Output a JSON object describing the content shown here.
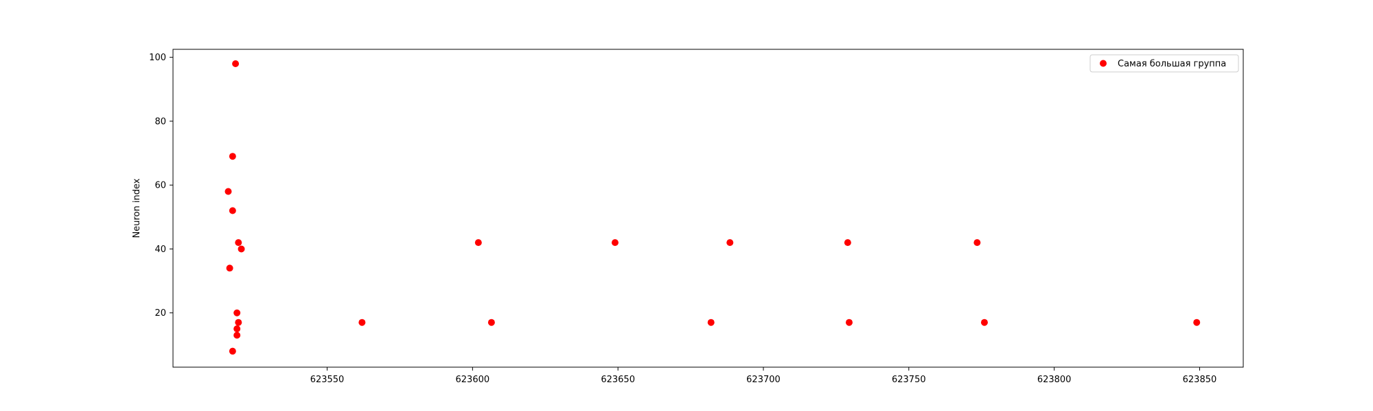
{
  "chart_data": {
    "type": "scatter",
    "title": "",
    "xlabel": "",
    "ylabel": "Neuron index",
    "xlim": [
      623497,
      623865
    ],
    "ylim": [
      3,
      102.5
    ],
    "xticks": [
      623550,
      623600,
      623650,
      623700,
      623750,
      623800,
      623850
    ],
    "yticks": [
      20,
      40,
      60,
      80,
      100
    ],
    "grid": false,
    "legend_position": "top-right",
    "series": [
      {
        "name": "Самая большая группа",
        "color": "#ff0000",
        "marker": "circle",
        "points": [
          {
            "x": 623518.5,
            "y": 98
          },
          {
            "x": 623517.5,
            "y": 69
          },
          {
            "x": 623516.0,
            "y": 58
          },
          {
            "x": 623517.5,
            "y": 52
          },
          {
            "x": 623519.5,
            "y": 42
          },
          {
            "x": 623520.5,
            "y": 40
          },
          {
            "x": 623516.5,
            "y": 34
          },
          {
            "x": 623519.0,
            "y": 20
          },
          {
            "x": 623519.5,
            "y": 17
          },
          {
            "x": 623519.0,
            "y": 15
          },
          {
            "x": 623519.0,
            "y": 13
          },
          {
            "x": 623517.5,
            "y": 8
          },
          {
            "x": 623562.0,
            "y": 17
          },
          {
            "x": 623602.0,
            "y": 42
          },
          {
            "x": 623606.5,
            "y": 17
          },
          {
            "x": 623649.0,
            "y": 42
          },
          {
            "x": 623682.0,
            "y": 17
          },
          {
            "x": 623688.5,
            "y": 42
          },
          {
            "x": 623729.0,
            "y": 42
          },
          {
            "x": 623729.5,
            "y": 17
          },
          {
            "x": 623773.5,
            "y": 42
          },
          {
            "x": 623776.0,
            "y": 17
          },
          {
            "x": 623849.0,
            "y": 17
          }
        ]
      }
    ]
  }
}
